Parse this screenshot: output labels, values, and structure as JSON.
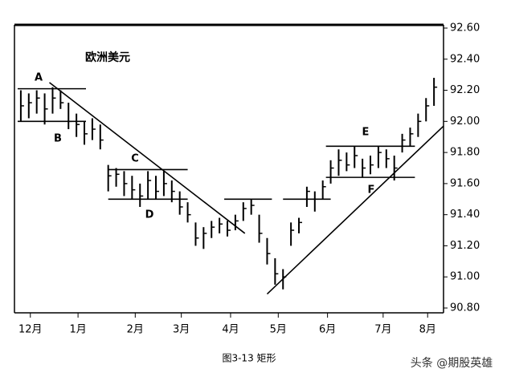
{
  "chart_data": {
    "type": "ohlc",
    "title": "欧洲美元",
    "x": [
      4,
      9,
      14,
      19,
      24,
      29,
      34,
      39,
      44,
      49,
      54,
      59,
      64,
      69,
      74,
      79,
      84,
      89,
      94,
      99,
      104,
      109,
      114,
      119,
      124,
      129,
      134,
      139,
      144,
      149,
      154,
      159,
      164,
      169,
      174,
      179,
      184,
      189,
      194,
      199,
      204,
      209,
      214,
      219,
      224,
      229,
      234,
      239,
      244,
      249,
      254,
      259,
      264
    ],
    "high": [
      92.2,
      92.18,
      92.2,
      92.18,
      92.22,
      92.2,
      92.12,
      92.05,
      92.0,
      92.02,
      91.98,
      91.72,
      91.7,
      91.68,
      91.65,
      91.6,
      91.68,
      91.65,
      91.68,
      91.62,
      91.55,
      91.48,
      91.35,
      91.32,
      91.36,
      91.38,
      91.36,
      91.4,
      91.48,
      91.5,
      91.4,
      91.25,
      91.12,
      91.05,
      91.35,
      91.38,
      91.58,
      91.55,
      91.62,
      91.75,
      91.82,
      91.8,
      91.84,
      91.76,
      91.78,
      91.84,
      91.82,
      91.78,
      91.92,
      91.96,
      92.05,
      92.15,
      92.28
    ],
    "low": [
      92.0,
      92.02,
      92.05,
      91.98,
      92.05,
      92.08,
      91.95,
      91.9,
      91.85,
      91.88,
      91.82,
      91.55,
      91.58,
      91.52,
      91.5,
      91.45,
      91.5,
      91.5,
      91.52,
      91.48,
      91.4,
      91.35,
      91.2,
      91.18,
      91.25,
      91.28,
      91.26,
      91.3,
      91.36,
      91.4,
      91.22,
      91.08,
      90.95,
      90.92,
      91.2,
      91.28,
      91.45,
      91.42,
      91.5,
      91.6,
      91.65,
      91.68,
      91.7,
      91.64,
      91.66,
      91.7,
      91.7,
      91.62,
      91.8,
      91.84,
      91.9,
      92.0,
      92.1
    ],
    "close": [
      92.1,
      92.12,
      92.15,
      92.08,
      92.15,
      92.12,
      92.0,
      91.98,
      91.92,
      91.95,
      91.88,
      91.65,
      91.66,
      91.6,
      91.56,
      91.52,
      91.62,
      91.55,
      91.6,
      91.55,
      91.45,
      91.4,
      91.25,
      91.28,
      91.32,
      91.34,
      91.3,
      91.36,
      91.44,
      91.46,
      91.28,
      91.15,
      91.02,
      91.0,
      91.3,
      91.35,
      91.55,
      91.5,
      91.58,
      91.7,
      91.75,
      91.72,
      91.78,
      91.7,
      91.72,
      91.8,
      91.76,
      91.7,
      91.88,
      91.92,
      92.0,
      92.1,
      92.22
    ],
    "color": "#000000",
    "lines": [
      {
        "x": [
          2,
          45
        ],
        "y": [
          92.21,
          92.21
        ]
      },
      {
        "x": [
          2,
          45
        ],
        "y": [
          92.0,
          92.0
        ]
      },
      {
        "x": [
          59,
          109
        ],
        "y": [
          91.69,
          91.69
        ]
      },
      {
        "x": [
          59,
          109
        ],
        "y": [
          91.5,
          91.5
        ]
      },
      {
        "x": [
          132,
          162
        ],
        "y": [
          91.5,
          91.5
        ]
      },
      {
        "x": [
          169,
          199
        ],
        "y": [
          91.5,
          91.5
        ]
      },
      {
        "x": [
          196,
          252
        ],
        "y": [
          91.84,
          91.84
        ]
      },
      {
        "x": [
          196,
          252
        ],
        "y": [
          91.64,
          91.64
        ]
      },
      {
        "x": [
          22,
          145
        ],
        "y": [
          92.25,
          91.28
        ]
      },
      {
        "x": [
          159,
          270
        ],
        "y": [
          90.89,
          91.97
        ]
      }
    ],
    "annotations": [
      "A",
      "B",
      "C",
      "D",
      "E",
      "F"
    ],
    "xlim": [
      0,
      270
    ],
    "ylim": [
      90.8,
      92.6
    ],
    "xticks": [
      {
        "value": 10,
        "label": "12月"
      },
      {
        "value": 40,
        "label": "1月"
      },
      {
        "value": 76,
        "label": "2月"
      },
      {
        "value": 105,
        "label": "3月"
      },
      {
        "value": 136,
        "label": "4月"
      },
      {
        "value": 166,
        "label": "5月"
      },
      {
        "value": 197,
        "label": "6月"
      },
      {
        "value": 232,
        "label": "7月"
      },
      {
        "value": 260,
        "label": "8月"
      }
    ],
    "yticks": [
      {
        "value": 90.8,
        "label": "90.80"
      },
      {
        "value": 91.0,
        "label": "91.00"
      },
      {
        "value": 91.2,
        "label": "91.20"
      },
      {
        "value": 91.4,
        "label": "91.40"
      },
      {
        "value": 91.6,
        "label": "91.60"
      },
      {
        "value": 91.8,
        "label": "91.80"
      },
      {
        "value": 92.0,
        "label": "92.00"
      },
      {
        "value": 92.2,
        "label": "92.20"
      },
      {
        "value": 92.4,
        "label": "92.40"
      },
      {
        "value": 92.6,
        "label": "92.60"
      }
    ],
    "caption": "图3-13 矩形",
    "watermark": "头条 @期股英雄"
  }
}
